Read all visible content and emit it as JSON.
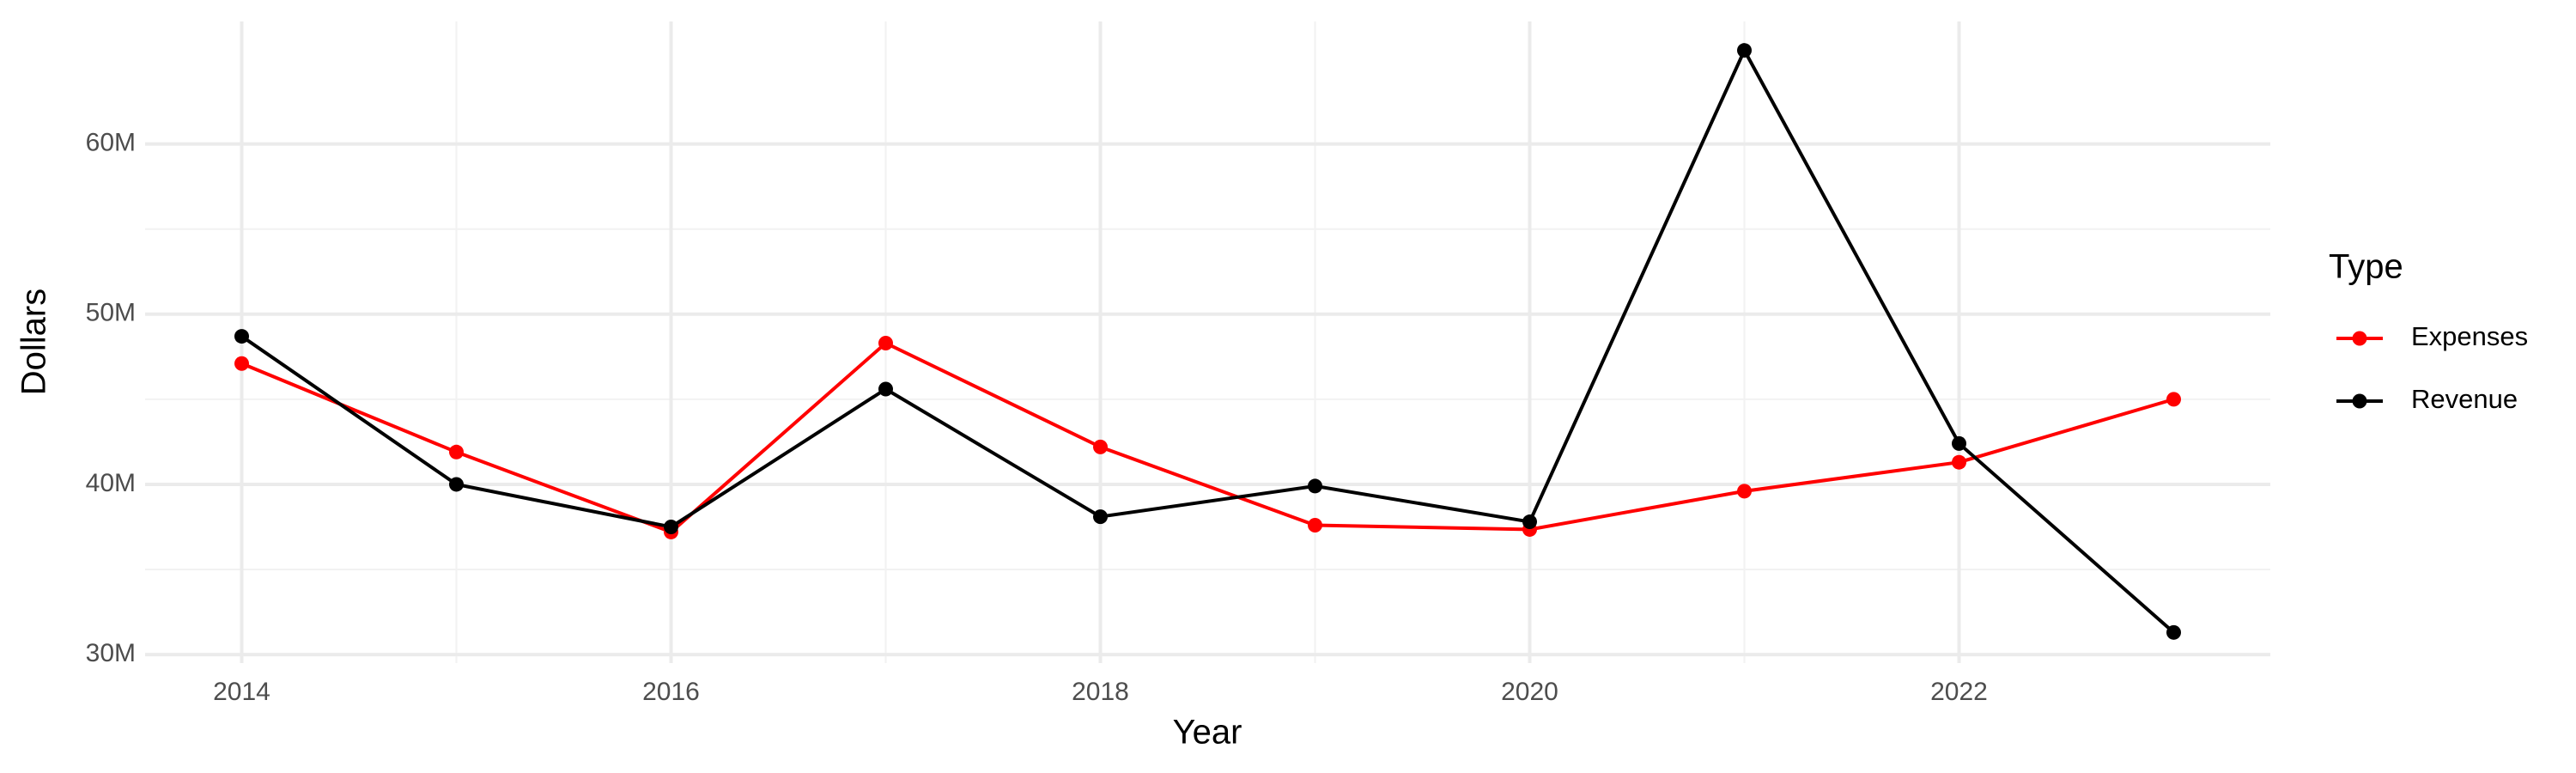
{
  "chart_data": {
    "type": "line",
    "x_label": "Year",
    "y_label": "Dollars",
    "x": [
      2014,
      2015,
      2016,
      2017,
      2018,
      2019,
      2020,
      2021,
      2022,
      2023
    ],
    "series": [
      {
        "name": "Expenses",
        "color": "#ff0000",
        "values": [
          47100000,
          41900000,
          37200000,
          48300000,
          42200000,
          37600000,
          37350000,
          39600000,
          41300000,
          45000000
        ]
      },
      {
        "name": "Revenue",
        "color": "#000000",
        "values": [
          48700000,
          40000000,
          37500000,
          45600000,
          38100000,
          39900000,
          37800000,
          65500000,
          42400000,
          31300000
        ]
      }
    ],
    "xlim": [
      2013.55,
      2023.45
    ],
    "xticks": [
      2014,
      2016,
      2018,
      2020,
      2022
    ],
    "ylim": [
      29500000,
      67200000
    ],
    "yticks": [
      {
        "value": 30000000,
        "label": "30M"
      },
      {
        "value": 40000000,
        "label": "40M"
      },
      {
        "value": 50000000,
        "label": "50M"
      },
      {
        "value": 60000000,
        "label": "60M"
      }
    ],
    "grid": true,
    "legend_title": "Type",
    "legend_position": "right"
  }
}
